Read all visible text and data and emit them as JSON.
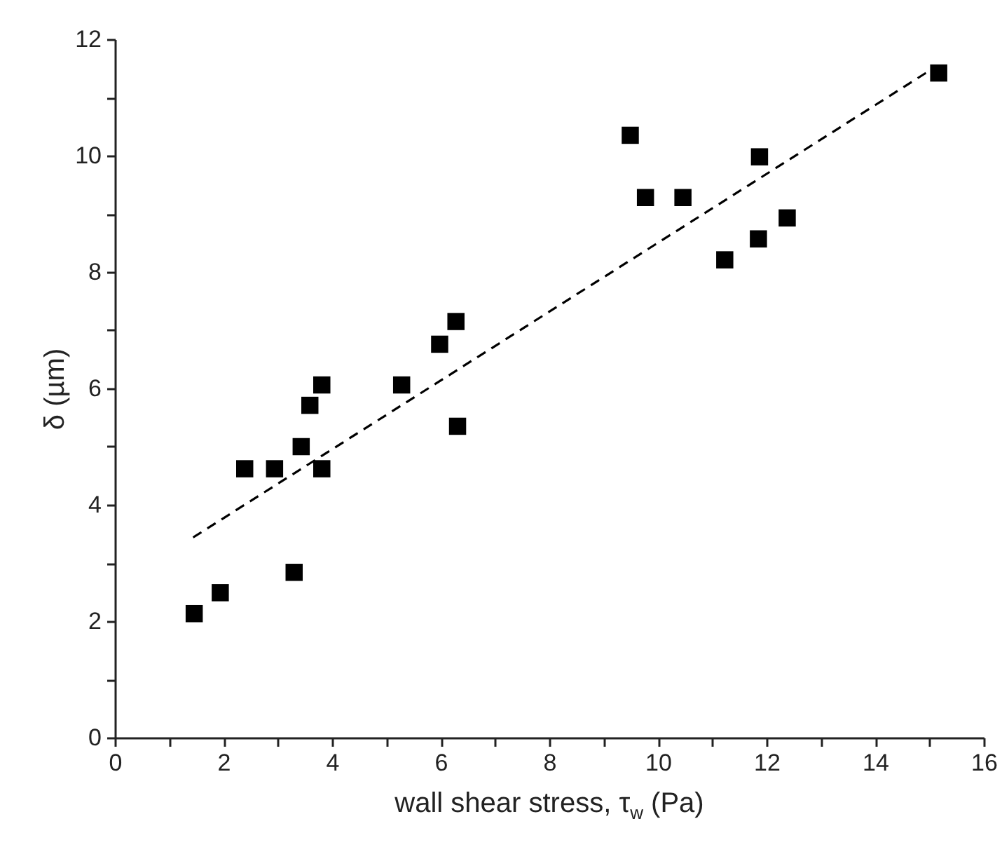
{
  "chart_data": {
    "type": "scatter",
    "xlabel": "wall shear stress, τ$_{w}$ (Pa)",
    "ylabel": "δ (µm)",
    "xlim": [
      0,
      16
    ],
    "ylim": [
      0,
      12
    ],
    "xticks": [
      0,
      {
        "value": 1,
        "label": null
      },
      2,
      {
        "value": 3,
        "label": null
      },
      4,
      {
        "value": 5,
        "label": null
      },
      6,
      {
        "value": 7,
        "label": null
      },
      8,
      {
        "value": 9,
        "label": null
      },
      10,
      {
        "value": 11,
        "label": null
      },
      12,
      {
        "value": 13,
        "label": null
      },
      14,
      {
        "value": 15,
        "label": null
      },
      16
    ],
    "yticks": [
      0,
      {
        "value": 1,
        "label": null
      },
      2,
      {
        "value": 3,
        "label": null
      },
      4,
      {
        "value": 5,
        "label": null
      },
      6,
      {
        "value": 7,
        "label": null
      },
      8,
      {
        "value": 9,
        "label": null
      },
      10,
      {
        "value": 11,
        "label": null
      },
      12
    ],
    "grid": false,
    "series": [
      {
        "type": "scatter",
        "color": "#000000",
        "marker": "square",
        "x": [
          1.46,
          1.94,
          2.39,
          2.94,
          3.3,
          3.43,
          3.59,
          3.81,
          3.81,
          5.28,
          5.98,
          6.28,
          6.31,
          9.49,
          9.77,
          10.46,
          11.87,
          11.23,
          11.85,
          12.38,
          15.17
        ],
        "values": [
          2.13,
          2.49,
          4.62,
          4.62,
          2.84,
          5.0,
          5.71,
          6.06,
          4.62,
          6.06,
          6.76,
          7.15,
          5.35,
          10.35,
          9.28,
          9.28,
          9.98,
          8.21,
          8.57,
          8.93,
          11.42
        ]
      },
      {
        "type": "line",
        "color": "#000000",
        "line_style": "dashed",
        "x": [
          1.44,
          15.05
        ],
        "values": [
          3.44,
          11.49
        ]
      }
    ]
  }
}
